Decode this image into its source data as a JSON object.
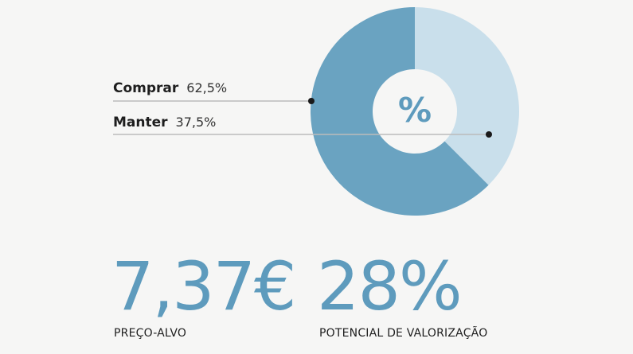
{
  "chart_data": {
    "type": "pie",
    "center_label": "%",
    "slices": [
      {
        "label": "Comprar",
        "value": 62.5,
        "value_text": "62,5%",
        "color": "#6aa3c1"
      },
      {
        "label": "Manter",
        "value": 37.5,
        "value_text": "37,5%",
        "color": "#c9dfeb"
      }
    ]
  },
  "stats": {
    "price": {
      "value": "7,37€",
      "label": "PREÇO-ALVO"
    },
    "potential": {
      "value": "28%",
      "label": "POTENCIAL DE VALORIZAÇÃO"
    }
  },
  "colors": {
    "accent": "#5e9bbd",
    "background": "#f6f6f5",
    "leader": "#bbbbbb"
  }
}
